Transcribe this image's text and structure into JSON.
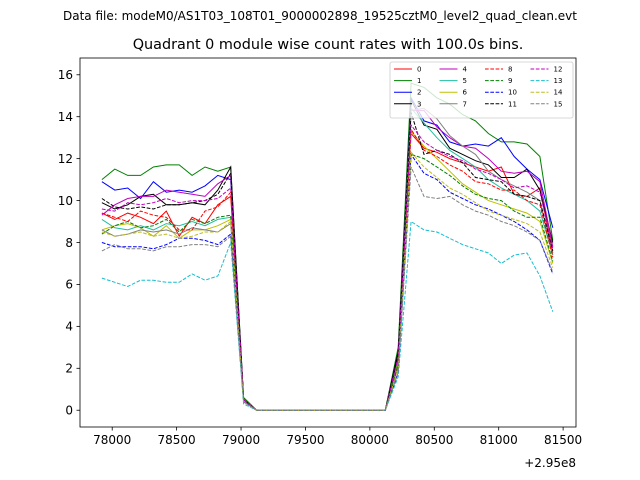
{
  "chart_data": {
    "type": "line",
    "suptitle": "Data file: modeM0/AS1T03_108T01_9000002898_19525cztM0_level2_quad_clean.evt",
    "title": "Quadrant 0 module wise count rates with 100.0s bins.",
    "xlabel": "",
    "ylabel": "",
    "x_offset_label": "+2.95e8",
    "xlim": [
      77750,
      81600
    ],
    "ylim": [
      -0.8,
      16.8
    ],
    "xticks": [
      78000,
      78500,
      79000,
      79500,
      80000,
      80500,
      81000,
      81500
    ],
    "yticks": [
      0,
      2,
      4,
      6,
      8,
      10,
      12,
      14,
      16
    ],
    "legend_position": "top-right",
    "x": [
      77920,
      78020,
      78120,
      78220,
      78320,
      78420,
      78520,
      78620,
      78720,
      78820,
      78920,
      79020,
      79120,
      79220,
      79320,
      79420,
      79520,
      79620,
      79720,
      79820,
      79920,
      80020,
      80120,
      80220,
      80320,
      80420,
      80520,
      80620,
      80720,
      80820,
      80920,
      81020,
      81120,
      81220,
      81320,
      81420
    ],
    "series": [
      {
        "name": "0",
        "color": "#ff0000",
        "dash": "solid",
        "values": [
          9.4,
          9.1,
          9.4,
          9.2,
          8.9,
          9.5,
          8.3,
          9.2,
          8.9,
          9.8,
          10.2,
          0.6,
          0.0,
          0.0,
          0.0,
          0.0,
          0.0,
          0.0,
          0.0,
          0.0,
          0.0,
          0.0,
          0.0,
          2.2,
          13.2,
          12.5,
          12.3,
          12.0,
          11.8,
          11.6,
          11.4,
          11.6,
          10.3,
          10.2,
          10.6,
          7.5
        ]
      },
      {
        "name": "1",
        "color": "#008000",
        "dash": "solid",
        "values": [
          11.0,
          11.5,
          11.2,
          11.2,
          11.6,
          11.7,
          11.7,
          11.2,
          11.6,
          11.4,
          11.6,
          0.6,
          0.0,
          0.0,
          0.0,
          0.0,
          0.0,
          0.0,
          0.0,
          0.0,
          0.0,
          0.0,
          0.0,
          3.0,
          15.6,
          15.4,
          14.9,
          14.6,
          14.1,
          13.8,
          13.2,
          12.8,
          12.8,
          12.7,
          12.1,
          8.1
        ]
      },
      {
        "name": "2",
        "color": "#0000ff",
        "dash": "solid",
        "values": [
          10.9,
          10.5,
          10.6,
          10.1,
          10.9,
          10.4,
          10.5,
          10.4,
          10.7,
          11.2,
          11.0,
          0.5,
          0.0,
          0.0,
          0.0,
          0.0,
          0.0,
          0.0,
          0.0,
          0.0,
          0.0,
          0.0,
          0.0,
          2.5,
          14.9,
          13.8,
          13.6,
          12.8,
          12.6,
          12.7,
          12.6,
          13.0,
          12.1,
          11.5,
          11.0,
          8.7
        ]
      },
      {
        "name": "3",
        "color": "#000000",
        "dash": "solid",
        "values": [
          9.9,
          9.6,
          9.8,
          10.2,
          10.3,
          9.8,
          9.8,
          9.9,
          9.8,
          10.5,
          11.6,
          0.5,
          0.0,
          0.0,
          0.0,
          0.0,
          0.0,
          0.0,
          0.0,
          0.0,
          0.0,
          0.0,
          0.0,
          2.8,
          14.8,
          13.6,
          13.4,
          12.5,
          12.2,
          11.9,
          11.7,
          11.1,
          11.1,
          11.5,
          10.5,
          8.0
        ]
      },
      {
        "name": "4",
        "color": "#bf00bf",
        "dash": "solid",
        "values": [
          9.3,
          9.8,
          10.1,
          10.2,
          10.2,
          10.5,
          10.4,
          10.3,
          10.2,
          10.8,
          11.2,
          0.5,
          0.0,
          0.0,
          0.0,
          0.0,
          0.0,
          0.0,
          0.0,
          0.0,
          0.0,
          0.0,
          0.0,
          2.6,
          14.3,
          14.3,
          13.5,
          13.0,
          12.6,
          12.5,
          12.0,
          11.4,
          11.3,
          11.4,
          10.9,
          7.8
        ]
      },
      {
        "name": "5",
        "color": "#1fbfa0",
        "dash": "solid",
        "values": [
          9.1,
          8.7,
          8.6,
          8.8,
          8.6,
          8.9,
          8.8,
          9.0,
          8.8,
          9.1,
          9.2,
          0.5,
          0.0,
          0.0,
          0.0,
          0.0,
          0.0,
          0.0,
          0.0,
          0.0,
          0.0,
          0.0,
          0.0,
          2.4,
          14.4,
          13.7,
          13.0,
          12.4,
          12.0,
          11.6,
          11.0,
          10.6,
          10.3,
          10.0,
          9.5,
          7.4
        ]
      },
      {
        "name": "6",
        "color": "#bfbf00",
        "dash": "solid",
        "values": [
          8.6,
          8.8,
          8.9,
          8.7,
          8.3,
          8.8,
          8.2,
          8.6,
          8.6,
          8.8,
          9.1,
          0.5,
          0.0,
          0.0,
          0.0,
          0.0,
          0.0,
          0.0,
          0.0,
          0.0,
          0.0,
          0.0,
          0.0,
          2.3,
          13.3,
          12.6,
          12.0,
          11.4,
          10.8,
          10.4,
          10.0,
          9.8,
          9.6,
          9.4,
          9.0,
          7.0
        ]
      },
      {
        "name": "7",
        "color": "#808080",
        "dash": "solid",
        "values": [
          8.6,
          8.3,
          8.4,
          8.6,
          8.5,
          8.6,
          8.4,
          8.7,
          8.6,
          8.5,
          8.9,
          0.4,
          0.0,
          0.0,
          0.0,
          0.0,
          0.0,
          0.0,
          0.0,
          0.0,
          0.0,
          0.0,
          0.0,
          2.2,
          14.3,
          14.4,
          13.9,
          13.1,
          12.6,
          12.2,
          11.4,
          11.0,
          10.7,
          10.4,
          10.0,
          7.4
        ]
      },
      {
        "name": "8",
        "color": "#ff0000",
        "dash": "dashed",
        "values": [
          9.4,
          9.2,
          9.0,
          9.5,
          9.3,
          9.2,
          8.6,
          8.6,
          9.5,
          9.7,
          10.4,
          0.5,
          0.0,
          0.0,
          0.0,
          0.0,
          0.0,
          0.0,
          0.0,
          0.0,
          0.0,
          0.0,
          0.0,
          2.1,
          13.4,
          12.4,
          12.1,
          11.7,
          11.4,
          10.9,
          10.8,
          10.5,
          10.5,
          10.0,
          9.8,
          7.3
        ]
      },
      {
        "name": "9",
        "color": "#008000",
        "dash": "dashed",
        "values": [
          8.4,
          8.8,
          9.0,
          8.7,
          8.8,
          9.1,
          8.5,
          9.1,
          8.9,
          9.2,
          9.3,
          0.5,
          0.0,
          0.0,
          0.0,
          0.0,
          0.0,
          0.0,
          0.0,
          0.0,
          0.0,
          0.0,
          0.0,
          2.2,
          12.2,
          12.0,
          11.6,
          11.2,
          10.7,
          10.3,
          10.1,
          10.0,
          9.5,
          9.2,
          9.2,
          7.1
        ]
      },
      {
        "name": "10",
        "color": "#0000ff",
        "dash": "dashed",
        "values": [
          8.0,
          7.8,
          7.8,
          7.8,
          7.7,
          7.9,
          8.2,
          8.2,
          8.1,
          7.9,
          8.4,
          0.4,
          0.0,
          0.0,
          0.0,
          0.0,
          0.0,
          0.0,
          0.0,
          0.0,
          0.0,
          0.0,
          0.0,
          1.8,
          12.2,
          11.3,
          11.0,
          10.4,
          10.1,
          9.8,
          9.6,
          9.3,
          9.0,
          8.6,
          8.1,
          6.5
        ]
      },
      {
        "name": "11",
        "color": "#000000",
        "dash": "dashed",
        "values": [
          10.1,
          9.7,
          9.6,
          9.7,
          9.6,
          9.8,
          9.8,
          9.9,
          10.0,
          10.3,
          11.3,
          0.5,
          0.0,
          0.0,
          0.0,
          0.0,
          0.0,
          0.0,
          0.0,
          0.0,
          0.0,
          0.0,
          0.0,
          2.6,
          14.2,
          12.2,
          12.4,
          12.2,
          11.8,
          11.1,
          11.0,
          10.9,
          10.3,
          10.2,
          10.0,
          7.6
        ]
      },
      {
        "name": "12",
        "color": "#bf00bf",
        "dash": "dashed",
        "values": [
          9.6,
          9.5,
          9.9,
          9.8,
          9.9,
          10.1,
          9.9,
          10.0,
          10.0,
          10.1,
          10.6,
          0.5,
          0.0,
          0.0,
          0.0,
          0.0,
          0.0,
          0.0,
          0.0,
          0.0,
          0.0,
          0.0,
          0.0,
          2.5,
          13.6,
          12.8,
          12.4,
          12.1,
          11.9,
          11.5,
          11.3,
          11.0,
          10.6,
          10.7,
          10.4,
          7.7
        ]
      },
      {
        "name": "13",
        "color": "#17becf",
        "dash": "dashed",
        "values": [
          6.3,
          6.1,
          5.9,
          6.2,
          6.2,
          6.1,
          6.1,
          6.5,
          6.2,
          6.4,
          8.0,
          0.3,
          0.0,
          0.0,
          0.0,
          0.0,
          0.0,
          0.0,
          0.0,
          0.0,
          0.0,
          0.0,
          0.0,
          1.6,
          9.0,
          8.6,
          8.5,
          8.2,
          7.9,
          7.7,
          7.5,
          7.0,
          7.4,
          7.5,
          6.4,
          4.7
        ]
      },
      {
        "name": "14",
        "color": "#bcbd22",
        "dash": "dashed",
        "values": [
          8.5,
          8.3,
          8.4,
          8.5,
          8.3,
          8.4,
          8.2,
          8.3,
          8.5,
          8.5,
          9.0,
          0.4,
          0.0,
          0.0,
          0.0,
          0.0,
          0.0,
          0.0,
          0.0,
          0.0,
          0.0,
          0.0,
          0.0,
          2.0,
          12.3,
          11.6,
          11.1,
          10.6,
          10.3,
          9.9,
          9.5,
          9.3,
          9.1,
          8.9,
          8.5,
          6.8
        ]
      },
      {
        "name": "15",
        "color": "#808080",
        "dash": "dashed",
        "values": [
          7.6,
          7.9,
          7.7,
          7.7,
          7.6,
          7.8,
          7.8,
          7.9,
          7.9,
          7.8,
          8.3,
          0.4,
          0.0,
          0.0,
          0.0,
          0.0,
          0.0,
          0.0,
          0.0,
          0.0,
          0.0,
          0.0,
          0.0,
          1.8,
          11.6,
          10.2,
          10.1,
          10.2,
          9.8,
          9.5,
          9.3,
          9.0,
          8.8,
          8.5,
          8.1,
          6.6
        ]
      }
    ]
  }
}
